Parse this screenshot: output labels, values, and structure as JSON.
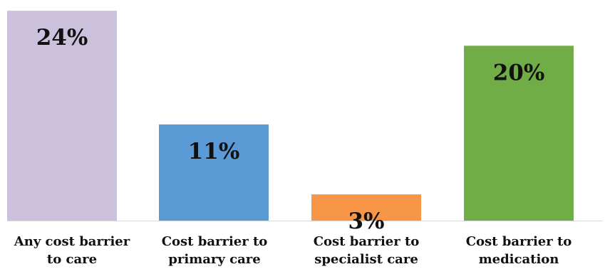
{
  "chart_data": {
    "type": "bar",
    "categories": [
      [
        "Any cost barrier",
        "to care"
      ],
      [
        "Cost barrier to",
        "primary care"
      ],
      [
        "Cost barrier to",
        "specialist care"
      ],
      [
        "Cost barrier to",
        "medication"
      ]
    ],
    "values": [
      24,
      11,
      3,
      20
    ],
    "value_labels": [
      "24%",
      "11%",
      "3%",
      "20%"
    ],
    "colors": [
      "#ccc1dc",
      "#5b9bd5",
      "#f79646",
      "#70ad47"
    ],
    "ylim": [
      0,
      24.5
    ],
    "grid": false,
    "title": "",
    "xlabel": "",
    "ylabel": ""
  }
}
